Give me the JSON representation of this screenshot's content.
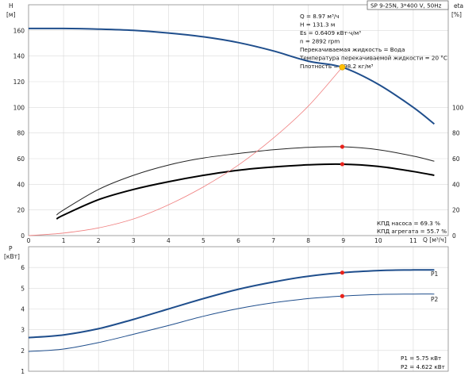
{
  "header": {
    "model": "SP 9-25N, 3*400 V, 50Hz"
  },
  "info": [
    "Q = 8.97 м³/ч",
    "H = 131.3 м",
    "Es = 0.6409 кВт·ч/м³",
    "n = 2892 rpm",
    "Перекачиваемая жидкость = Вода",
    "Температура перекачиваемой жидкости = 20 °C",
    "Плотность = 998.2 кг/м³"
  ],
  "efficiency_text": [
    "КПД насоса = 69.3 %",
    "КПД агрегата = 55.7 %"
  ],
  "power_text": [
    "P1 = 5.75 кВт",
    "P2 = 4.622 кВт"
  ],
  "axes": {
    "h_label": "H",
    "h_unit": "[м]",
    "eta_label": "eta",
    "eta_unit": "[%]",
    "q_label": "Q [м³/ч]",
    "p_label": "P",
    "p_unit": "[кВт]"
  },
  "colors": {
    "h_curve": "#1f4e8c",
    "eta_pump": "#222222",
    "eta_unit": "#000000",
    "system": "#f08080",
    "p_curve": "#1f4e8c",
    "duty_point_h": "#ffc000",
    "duty_point": "#e8221b"
  },
  "chart_data": [
    {
      "type": "line",
      "name": "top",
      "xlim": [
        0,
        12
      ],
      "ylim_left": [
        0,
        180
      ],
      "ylim_right": [
        0,
        180
      ],
      "xticks": [
        0,
        1,
        2,
        3,
        4,
        5,
        6,
        7,
        8,
        9,
        10,
        11
      ],
      "yticks_left": [
        0,
        20,
        40,
        60,
        80,
        100,
        120,
        140,
        160
      ],
      "yticks_right": [
        0,
        20,
        40,
        60,
        80,
        100
      ],
      "series": [
        {
          "key": "H",
          "axis": "left",
          "x": [
            0,
            1,
            2,
            3,
            4,
            5,
            6,
            7,
            8,
            8.97,
            10,
            11,
            11.6
          ],
          "y": [
            161.5,
            161.5,
            161,
            160,
            158,
            155,
            150.5,
            144,
            136,
            131.3,
            118,
            100,
            87
          ]
        },
        {
          "key": "eta_pump",
          "axis": "right",
          "x": [
            0.8,
            1,
            2,
            3,
            4,
            5,
            6,
            7,
            8,
            8.97,
            10,
            11,
            11.6
          ],
          "y": [
            16,
            20,
            36,
            47,
            55,
            60.5,
            64,
            67,
            68.8,
            69.3,
            67,
            62,
            58
          ]
        },
        {
          "key": "eta_unit",
          "axis": "right",
          "x": [
            0.8,
            1,
            2,
            3,
            4,
            5,
            6,
            7,
            8,
            8.97,
            10,
            11,
            11.6
          ],
          "y": [
            13,
            16,
            28,
            36,
            42,
            47,
            51,
            53.5,
            55.2,
            55.7,
            54,
            50,
            47
          ]
        },
        {
          "key": "system",
          "axis": "left",
          "x": [
            0,
            1,
            2,
            3,
            4,
            5,
            6,
            7,
            8,
            8.97
          ],
          "y": [
            0,
            2,
            6,
            13,
            24,
            38,
            55,
            76,
            101,
            131.3
          ]
        }
      ],
      "duty_points": [
        {
          "key": "H",
          "x": 8.97,
          "y": 131.3
        },
        {
          "key": "eta_pump",
          "x": 8.97,
          "y": 69.3
        },
        {
          "key": "eta_unit",
          "x": 8.97,
          "y": 55.7
        }
      ]
    },
    {
      "type": "line",
      "name": "bottom",
      "xlim": [
        0,
        12
      ],
      "ylim": [
        1,
        7
      ],
      "yticks": [
        1,
        2,
        3,
        4,
        5,
        6
      ],
      "series": [
        {
          "key": "P1",
          "name": "P1",
          "x": [
            0,
            1,
            2,
            3,
            4,
            5,
            6,
            7,
            8,
            8.97,
            10,
            11,
            11.6
          ],
          "y": [
            2.62,
            2.75,
            3.05,
            3.5,
            4.0,
            4.5,
            4.95,
            5.3,
            5.58,
            5.75,
            5.85,
            5.88,
            5.88
          ]
        },
        {
          "key": "P2",
          "name": "P2",
          "x": [
            0,
            1,
            2,
            3,
            4,
            5,
            6,
            7,
            8,
            8.97,
            10,
            11,
            11.6
          ],
          "y": [
            1.95,
            2.07,
            2.38,
            2.78,
            3.2,
            3.65,
            4.02,
            4.3,
            4.5,
            4.622,
            4.7,
            4.72,
            4.72
          ]
        }
      ],
      "duty_points": [
        {
          "key": "P1",
          "x": 8.97,
          "y": 5.75
        },
        {
          "key": "P2",
          "x": 8.97,
          "y": 4.622
        }
      ]
    }
  ]
}
